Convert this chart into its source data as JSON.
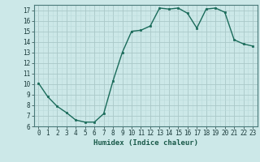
{
  "x": [
    0,
    1,
    2,
    3,
    4,
    5,
    6,
    7,
    8,
    9,
    10,
    11,
    12,
    13,
    14,
    15,
    16,
    17,
    18,
    19,
    20,
    21,
    22,
    23
  ],
  "y": [
    10.1,
    8.8,
    7.9,
    7.3,
    6.6,
    6.4,
    6.4,
    7.2,
    10.3,
    13.0,
    15.0,
    15.1,
    15.5,
    17.2,
    17.1,
    17.2,
    16.7,
    15.3,
    17.1,
    17.2,
    16.8,
    14.2,
    13.8,
    13.6
  ],
  "xlabel": "Humidex (Indice chaleur)",
  "ylim": [
    6,
    17.5
  ],
  "xlim": [
    -0.5,
    23.5
  ],
  "yticks": [
    6,
    7,
    8,
    9,
    10,
    11,
    12,
    13,
    14,
    15,
    16,
    17
  ],
  "xticks": [
    0,
    1,
    2,
    3,
    4,
    5,
    6,
    7,
    8,
    9,
    10,
    11,
    12,
    13,
    14,
    15,
    16,
    17,
    18,
    19,
    20,
    21,
    22,
    23
  ],
  "line_color": "#1a6b5a",
  "marker_color": "#1a6b5a",
  "bg_color": "#cce8e8",
  "grid_color_major": "#aac8c8",
  "grid_color_minor": "#bbdada",
  "xlabel_color": "#1a5a4a",
  "tick_color": "#1a3a3a"
}
